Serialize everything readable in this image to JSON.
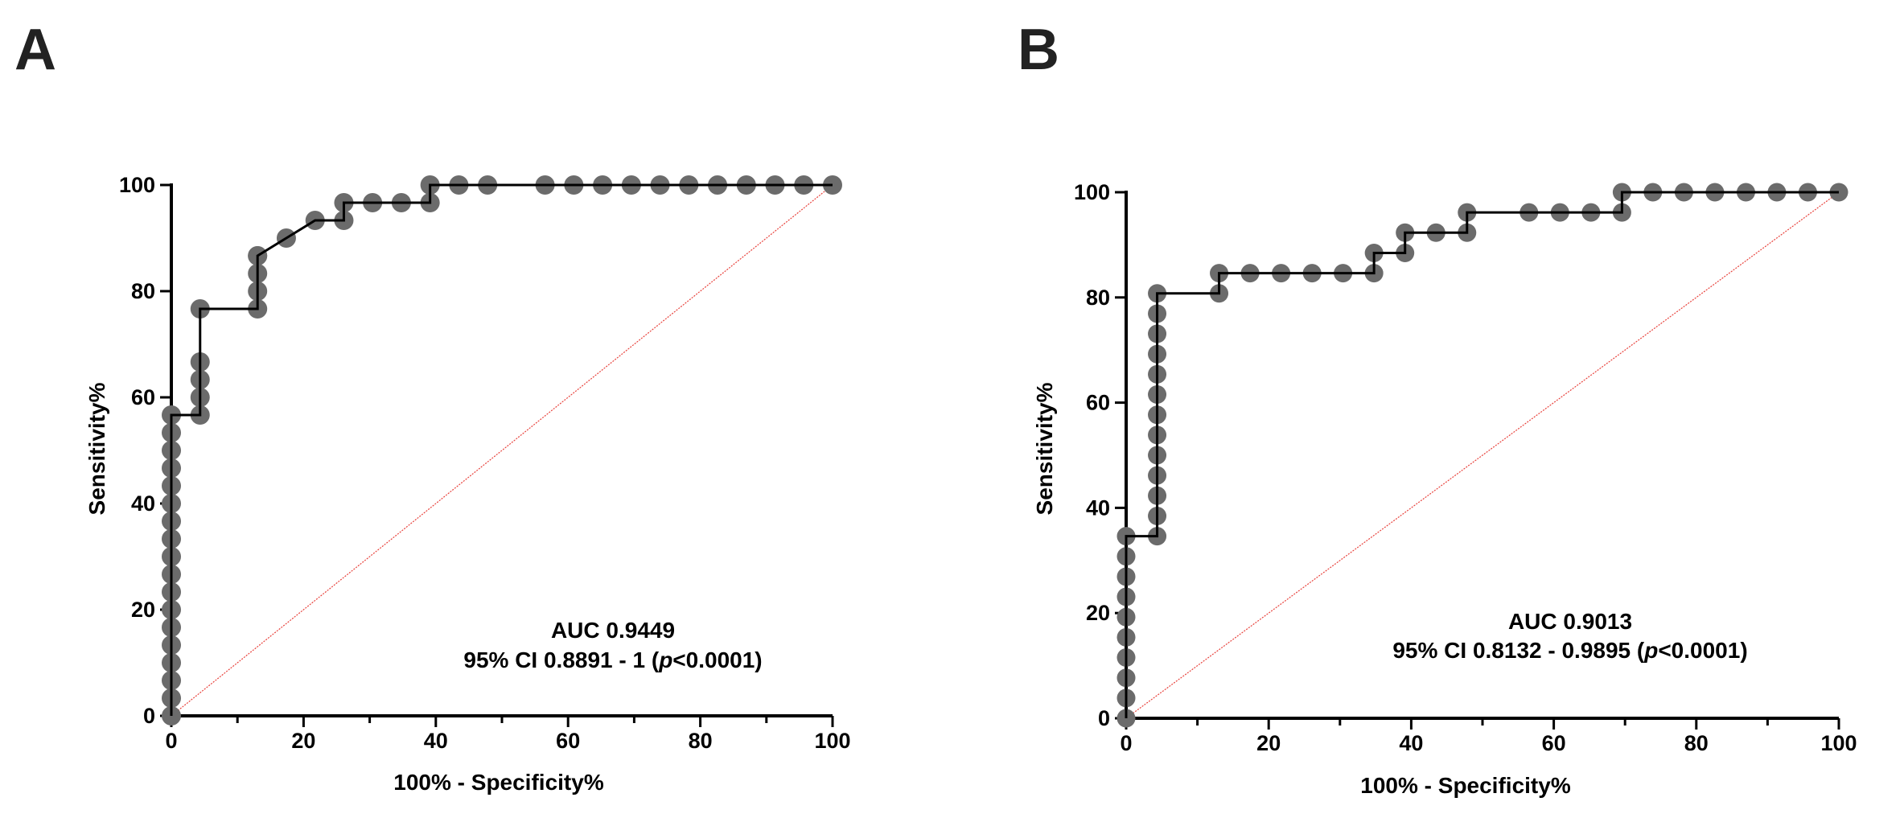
{
  "chart_data": [
    {
      "type": "scatter",
      "panel": "A",
      "xlabel": "100% - Specificity%",
      "ylabel": "Sensitivity%",
      "xlim": [
        0,
        100
      ],
      "ylim": [
        0,
        100
      ],
      "xticks": [
        0,
        20,
        40,
        60,
        80,
        100
      ],
      "yticks": [
        0,
        20,
        40,
        60,
        80,
        100
      ],
      "grid": false,
      "annotation_line1": "AUC 0.9449",
      "annotation_line2_prefix": "95% CI 0.8891 - 1 (",
      "annotation_p": "p",
      "annotation_line2_suffix": "<0.0001)",
      "colors": {
        "points": "#6b6b6b",
        "curve": "#000000",
        "diagonal": "#e8413b",
        "axes": "#000000"
      },
      "curve_x": [
        0,
        0,
        4.35,
        4.35,
        13.04,
        13.04,
        17.39,
        21.74,
        26.09,
        26.09,
        39.13,
        39.13,
        100
      ],
      "curve_y": [
        0,
        56.67,
        56.67,
        76.67,
        76.67,
        86.67,
        90,
        93.33,
        93.33,
        96.67,
        96.67,
        100,
        100
      ],
      "points_x": [
        0,
        0,
        0,
        0,
        0,
        0,
        0,
        0,
        0,
        0,
        0,
        0,
        0,
        0,
        0,
        0,
        0,
        0,
        4.35,
        4.35,
        4.35,
        4.35,
        4.35,
        13.04,
        13.04,
        13.04,
        13.04,
        13.04,
        17.39,
        21.74,
        26.09,
        26.09,
        30.43,
        34.78,
        39.13,
        39.13,
        43.48,
        47.83,
        56.52,
        60.87,
        65.22,
        69.57,
        73.91,
        78.26,
        82.61,
        86.96,
        91.3,
        95.65,
        100
      ],
      "points_y": [
        0,
        3.33,
        6.67,
        10,
        13.33,
        16.67,
        20,
        23.33,
        26.67,
        30,
        33.33,
        36.67,
        40,
        43.33,
        46.67,
        50,
        53.33,
        56.67,
        56.67,
        60,
        63.33,
        66.67,
        76.67,
        76.67,
        80,
        83.33,
        86.67,
        86.67,
        90,
        93.33,
        93.33,
        96.67,
        96.67,
        96.67,
        96.67,
        100,
        100,
        100,
        100,
        100,
        100,
        100,
        100,
        100,
        100,
        100,
        100,
        100,
        100
      ]
    },
    {
      "type": "scatter",
      "panel": "B",
      "xlabel": "100% - Specificity%",
      "ylabel": "Sensitivity%",
      "xlim": [
        0,
        100
      ],
      "ylim": [
        0,
        100
      ],
      "xticks": [
        0,
        20,
        40,
        60,
        80,
        100
      ],
      "yticks": [
        0,
        20,
        40,
        60,
        80,
        100
      ],
      "grid": false,
      "annotation_line1": "AUC 0.9013",
      "annotation_line2_prefix": "95% CI 0.8132 - 0.9895 (",
      "annotation_p": "p",
      "annotation_line2_suffix": "<0.0001)",
      "colors": {
        "points": "#6b6b6b",
        "curve": "#000000",
        "diagonal": "#e8413b",
        "axes": "#000000"
      },
      "curve_x": [
        0,
        0,
        4.35,
        4.35,
        13.04,
        13.04,
        34.78,
        34.78,
        39.13,
        39.13,
        47.83,
        47.83,
        69.57,
        69.57,
        100
      ],
      "curve_y": [
        0,
        34.62,
        34.62,
        80.77,
        80.77,
        84.62,
        84.62,
        88.46,
        88.46,
        92.31,
        92.31,
        96.15,
        96.15,
        100,
        100
      ],
      "points_x": [
        0,
        0,
        0,
        0,
        0,
        0,
        0,
        0,
        0,
        0,
        4.35,
        4.35,
        4.35,
        4.35,
        4.35,
        4.35,
        4.35,
        4.35,
        4.35,
        4.35,
        4.35,
        4.35,
        4.35,
        13.04,
        13.04,
        17.39,
        21.74,
        26.09,
        30.43,
        34.78,
        34.78,
        39.13,
        39.13,
        43.48,
        47.83,
        47.83,
        56.52,
        60.87,
        65.22,
        69.57,
        69.57,
        73.91,
        78.26,
        82.61,
        86.96,
        91.3,
        95.65,
        100
      ],
      "points_y": [
        0,
        3.85,
        7.69,
        11.54,
        15.38,
        19.23,
        23.08,
        26.92,
        30.77,
        34.62,
        34.62,
        38.46,
        42.31,
        46.15,
        50,
        53.85,
        57.69,
        61.54,
        65.38,
        69.23,
        73.08,
        76.92,
        80.77,
        80.77,
        84.62,
        84.62,
        84.62,
        84.62,
        84.62,
        84.62,
        88.46,
        88.46,
        92.31,
        92.31,
        92.31,
        96.15,
        96.15,
        96.15,
        96.15,
        96.15,
        100,
        100,
        100,
        100,
        100,
        100,
        100,
        100
      ]
    }
  ]
}
